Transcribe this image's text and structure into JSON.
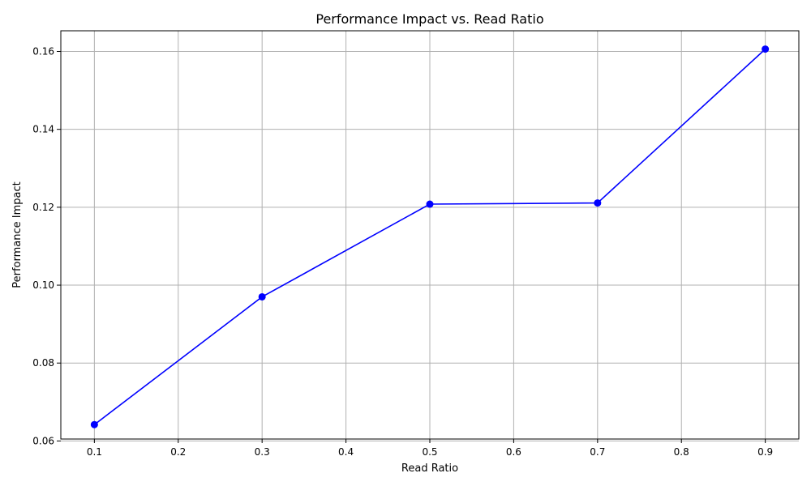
{
  "chart_data": {
    "type": "line",
    "title": "Performance Impact vs. Read Ratio",
    "xlabel": "Read Ratio",
    "ylabel": "Performance Impact",
    "x": [
      0.1,
      0.3,
      0.5,
      0.7,
      0.9
    ],
    "series": [
      {
        "values": [
          0.0642,
          0.097,
          0.1208,
          0.1211,
          0.1606
        ],
        "color": "#0000ff",
        "marker": "circle"
      }
    ],
    "xlim": [
      0.06,
      0.94
    ],
    "ylim": [
      0.0605,
      0.1653
    ],
    "xticks": [
      0.1,
      0.2,
      0.3,
      0.4,
      0.5,
      0.6,
      0.7,
      0.8,
      0.9
    ],
    "xtick_labels": [
      "0.1",
      "0.2",
      "0.3",
      "0.4",
      "0.5",
      "0.6",
      "0.7",
      "0.8",
      "0.9"
    ],
    "yticks": [
      0.06,
      0.08,
      0.1,
      0.12,
      0.14,
      0.16
    ],
    "ytick_labels": [
      "0.06",
      "0.08",
      "0.10",
      "0.12",
      "0.14",
      "0.16"
    ],
    "grid": true,
    "legend": false
  }
}
